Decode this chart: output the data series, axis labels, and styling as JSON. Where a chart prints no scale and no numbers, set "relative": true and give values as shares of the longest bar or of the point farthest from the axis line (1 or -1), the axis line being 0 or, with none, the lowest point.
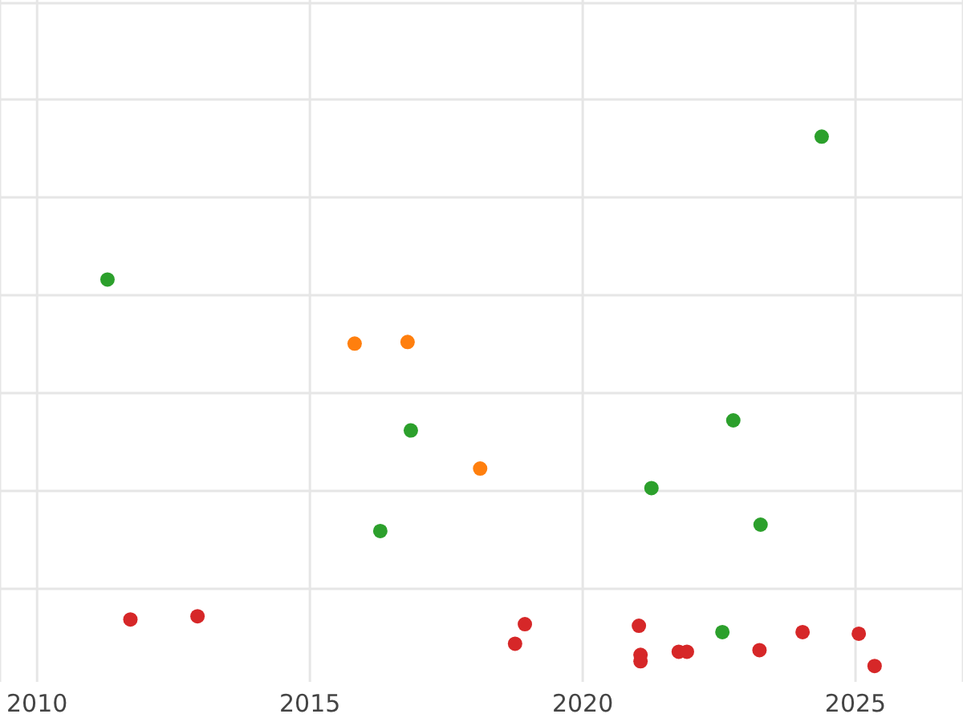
{
  "chart_data": {
    "type": "scatter",
    "relative": true,
    "grid": true,
    "marker": "circle",
    "tick_labels": "x",
    "xlim": [
      2009.32,
      2026.97
    ],
    "xticks": [
      2010,
      2015,
      2020,
      2025
    ],
    "series": [
      {
        "color": "#2ca02c",
        "x": [
          2011.29,
          2024.38,
          2016.85,
          2022.76,
          2021.26,
          2016.29,
          2023.26,
          2022.56
        ],
        "values": [
          0.73,
          1.0,
          0.445,
          0.464,
          0.336,
          0.255,
          0.267,
          0.064
        ]
      },
      {
        "color": "#ff7f0e",
        "x": [
          2015.82,
          2016.79,
          2018.12
        ],
        "values": [
          0.609,
          0.612,
          0.373
        ]
      },
      {
        "color": "#d62728",
        "x": [
          2011.71,
          2012.94,
          2018.94,
          2018.76,
          2021.03,
          2021.06,
          2021.06,
          2021.76,
          2021.91,
          2023.24,
          2024.03,
          2025.06,
          2025.35
        ],
        "values": [
          0.088,
          0.094,
          0.079,
          0.042,
          0.076,
          0.021,
          0.009,
          0.027,
          0.027,
          0.03,
          0.064,
          0.061,
          0
        ]
      }
    ]
  }
}
